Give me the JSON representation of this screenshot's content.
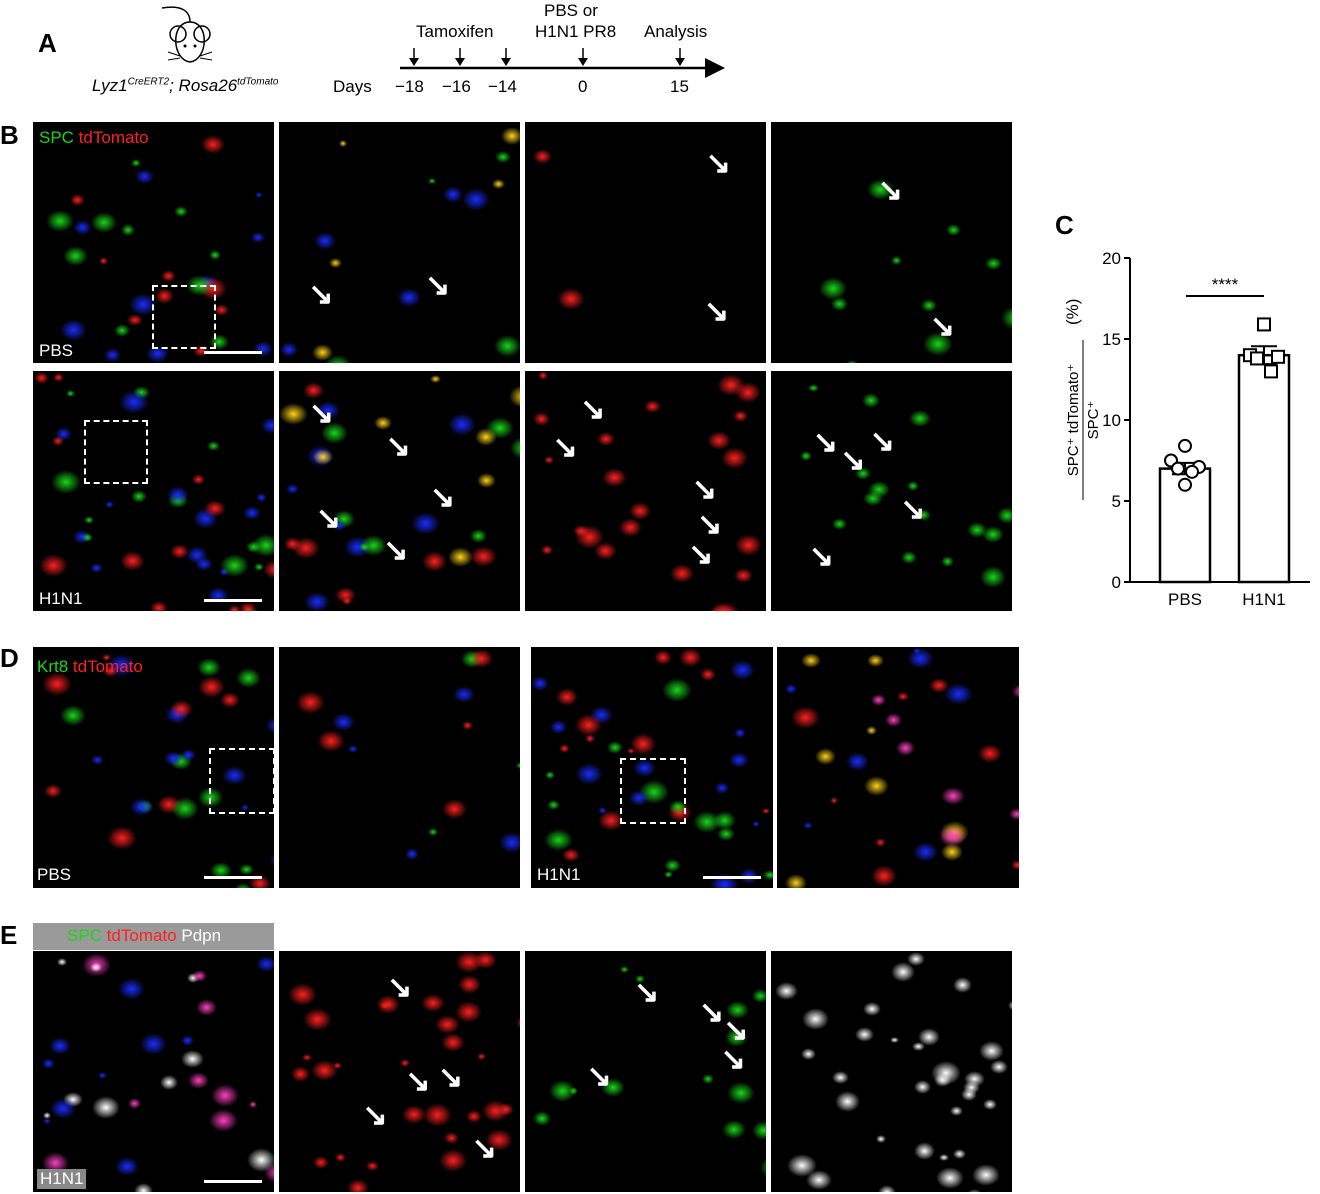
{
  "panel_labels": {
    "a": "A",
    "b": "B",
    "c": "C",
    "d": "D",
    "e": "E"
  },
  "panel_a": {
    "genotype_main1": "Lyz1",
    "genotype_sup1": "CreERT2",
    "genotype_main2": "; Rosa26",
    "genotype_sup2": "tdTomato",
    "days_label": "Days",
    "events": [
      {
        "day": "−18",
        "label": ""
      },
      {
        "day": "−16",
        "label": "Tamoxifen"
      },
      {
        "day": "−14",
        "label": ""
      },
      {
        "day": "0",
        "label": "PBS or H1N1 PR8"
      },
      {
        "day": "15",
        "label": "Analysis"
      }
    ],
    "event_line1": "PBS or",
    "event_line2": "H1N1 PR8"
  },
  "panel_b": {
    "stain_green": "SPC",
    "stain_red": "tdTomato",
    "row_labels": [
      "PBS",
      "H1N1"
    ]
  },
  "panel_d": {
    "stain_green": "Krt8",
    "stain_red": "tdTomato",
    "labels": [
      "PBS",
      "H1N1"
    ]
  },
  "panel_e": {
    "stain_green": "SPC",
    "stain_red": "tdTomato",
    "stain_white": "Pdpn",
    "label": "H1N1"
  },
  "colors": {
    "green": "#19d619",
    "red": "#ff2020",
    "blue": "#1a2cff",
    "white": "#ffffff"
  },
  "chart_data": {
    "type": "bar",
    "categories": [
      "PBS",
      "H1N1"
    ],
    "means": [
      7.0,
      14.0
    ],
    "sem": [
      0.35,
      0.55
    ],
    "points": [
      [
        8.4,
        7.5,
        7.1,
        7.0,
        6.8,
        6.0
      ],
      [
        15.9,
        14.0,
        13.9,
        13.8,
        13.0
      ]
    ],
    "markers": [
      "circle",
      "square"
    ],
    "ylabel_numerator": "SPC⁺ tdTomato⁺",
    "ylabel_denominator": "SPC⁺",
    "ylabel_unit": "(%)",
    "yticks": [
      0,
      5,
      10,
      15,
      20
    ],
    "ylim": [
      0,
      20
    ],
    "significance": "****"
  }
}
